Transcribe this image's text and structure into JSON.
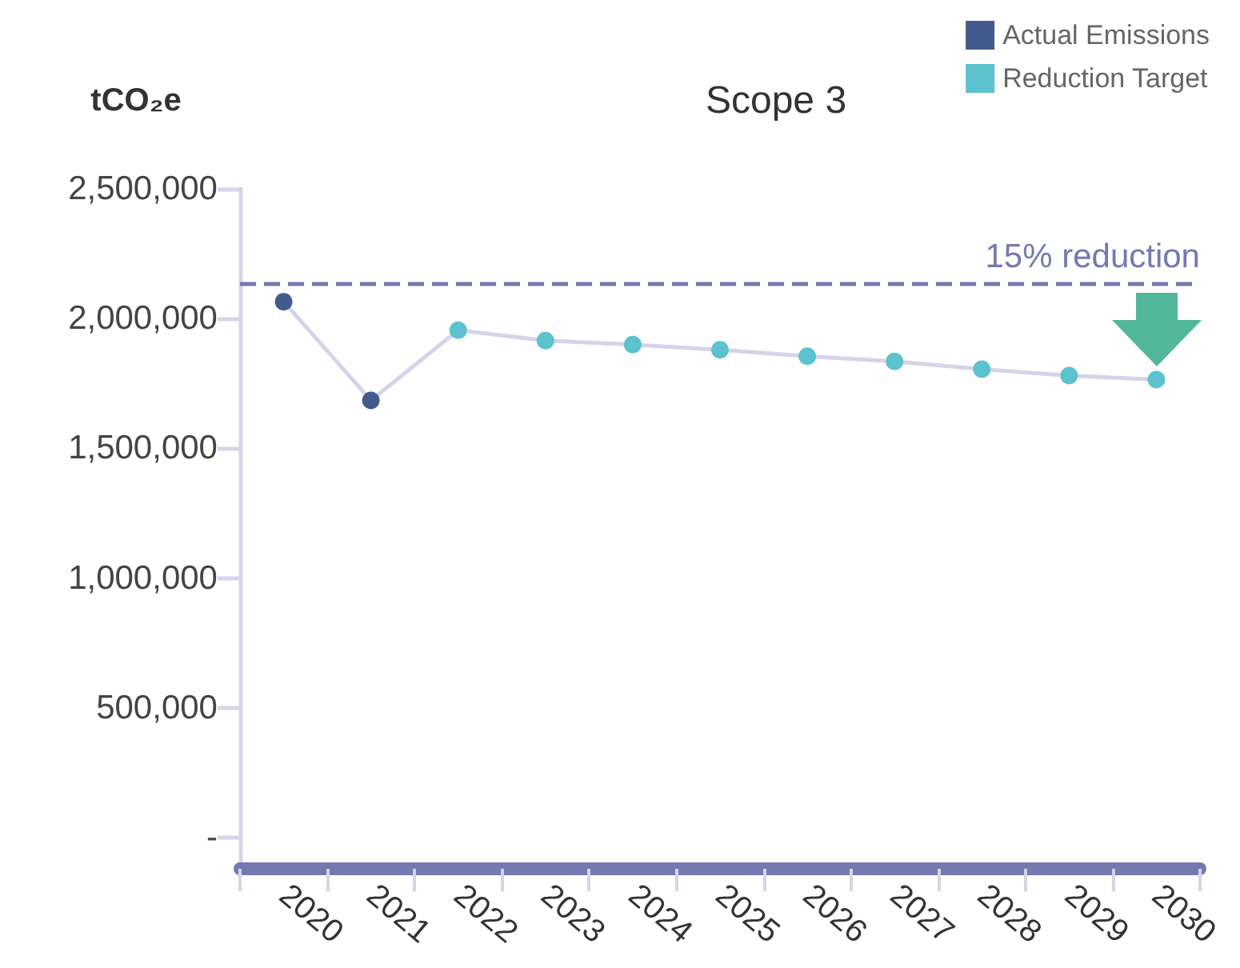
{
  "chart_data": {
    "type": "line",
    "title": "Scope 3",
    "ylabel": "tCO₂e",
    "categories": [
      "2020",
      "2021",
      "2022",
      "2023",
      "2024",
      "2025",
      "2026",
      "2027",
      "2028",
      "2029",
      "2030"
    ],
    "series": [
      {
        "color": "#d6d4e8",
        "marker": "none",
        "values": [
          2065000,
          1685000,
          1955000,
          1915000,
          1900000,
          1880000,
          1855000,
          1835000,
          1805000,
          1780000,
          1765000
        ]
      },
      {
        "type": "scatter",
        "name": "Actual Emissions",
        "color": "#435a8e",
        "values": [
          2065000,
          1685000,
          null,
          null,
          null,
          null,
          null,
          null,
          null,
          null,
          null
        ]
      },
      {
        "type": "scatter",
        "name": "Reduction Target",
        "color": "#5bc2ce",
        "values": [
          null,
          null,
          1955000,
          1915000,
          1900000,
          1880000,
          1855000,
          1835000,
          1805000,
          1780000,
          1765000
        ]
      }
    ],
    "ylim": [
      -120000,
      2500000
    ],
    "yticks": [
      {
        "value": 0,
        "label": "-"
      },
      {
        "value": 500000,
        "label": "500,000"
      },
      {
        "value": 1000000,
        "label": "1,000,000"
      },
      {
        "value": 1500000,
        "label": "1,500,000"
      },
      {
        "value": 2000000,
        "label": "2,000,000"
      },
      {
        "value": 2500000,
        "label": "2,500,000"
      }
    ],
    "ref_lines": [
      {
        "axis": "y",
        "value": 2135000,
        "label": "15% reduction",
        "color": "#7479b0",
        "line_style": "dashed"
      }
    ],
    "legend": "top right",
    "grid": false
  }
}
